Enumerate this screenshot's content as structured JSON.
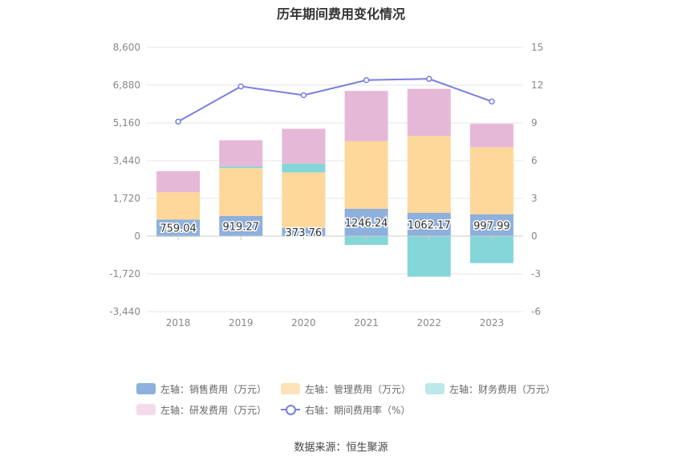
{
  "title": "历年期间费用变化情况",
  "source": "数据来源：恒生聚源",
  "colors": {
    "sales": "#8eb0dc",
    "admin": "#fdd89a",
    "finance": "#85d6d9",
    "rd": "#e6b8d8",
    "rate": "#7a7fe0"
  },
  "legend": [
    {
      "label": "左轴：销售费用（万元）",
      "key": "sales",
      "swatch": "#8eb0dc"
    },
    {
      "label": "左轴：管理费用（万元）",
      "key": "admin",
      "swatch": "#fde3b8"
    },
    {
      "label": "左轴：财务费用（万元）",
      "key": "finance",
      "swatch": "#bde8ea"
    },
    {
      "label": "左轴：研发费用（万元）",
      "key": "rd",
      "swatch": "#f3dbec"
    },
    {
      "label": "右轴：期间费用率（%）",
      "key": "rate",
      "swatch": "line"
    }
  ],
  "chart_data": {
    "type": "bar",
    "stacked": true,
    "categories": [
      "2018",
      "2019",
      "2020",
      "2021",
      "2022",
      "2023"
    ],
    "left_axis": {
      "ticks": [
        "8,600",
        "6,880",
        "5,160",
        "3,440",
        "1,720",
        "0",
        "-1,720",
        "-3,440"
      ],
      "ylim": [
        -3440,
        8600
      ]
    },
    "right_axis": {
      "ticks": [
        "15",
        "12",
        "9",
        "6",
        "3",
        "0",
        "-3",
        "-6"
      ],
      "ylim": [
        -6,
        15
      ]
    },
    "series": [
      {
        "name": "左轴：销售费用（万元）",
        "key": "sales",
        "values": [
          759.04,
          919.27,
          373.76,
          1246.24,
          1062.17,
          997.99
        ],
        "labels": [
          "759.04",
          "919.27",
          "373.76",
          "1246.24",
          "1062.17",
          "997.99"
        ]
      },
      {
        "name": "左轴：管理费用（万元）",
        "key": "admin",
        "values": [
          1240,
          2180,
          2530,
          3090,
          3500,
          3050
        ]
      },
      {
        "name": "左轴：财务费用（万元）",
        "key": "finance",
        "values": [
          -30,
          80,
          400,
          -400,
          -1850,
          -1230
        ]
      },
      {
        "name": "左轴：研发费用（万元）",
        "key": "rd",
        "values": [
          960,
          1190,
          1590,
          2280,
          2150,
          1070
        ]
      },
      {
        "name": "右轴：期间费用率（%）",
        "key": "rate",
        "axis": "right",
        "type": "line",
        "values": [
          9.1,
          11.9,
          11.2,
          12.4,
          12.5,
          10.7
        ]
      }
    ],
    "grid": true
  }
}
